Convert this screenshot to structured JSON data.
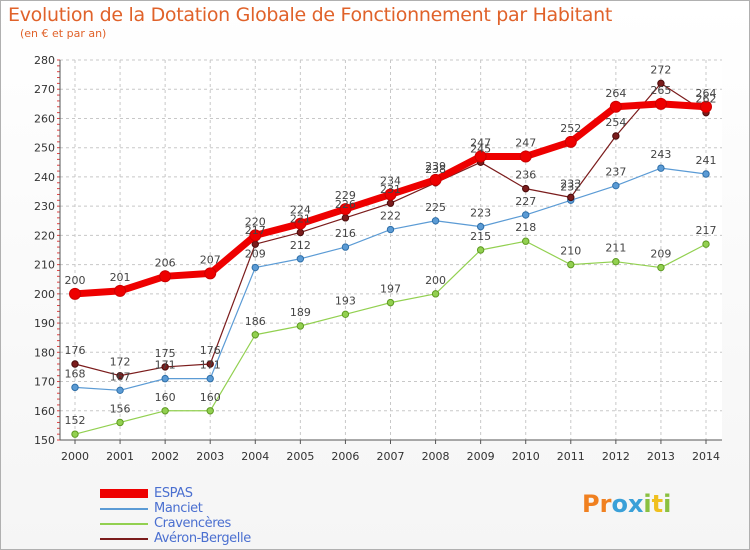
{
  "title": "Evolution de la Dotation Globale de Fonctionnement par Habitant",
  "subtitle": "(en € et par an)",
  "logo": {
    "letters": [
      "P",
      "r",
      "o",
      "x",
      "i",
      "t",
      "i"
    ],
    "colors": [
      "#f08020",
      "#f08020",
      "#3aa0d8",
      "#3aa0d8",
      "#8ac040",
      "#f0c020",
      "#8ac040"
    ]
  },
  "chart_data": {
    "type": "line",
    "x": [
      "2000",
      "2001",
      "2002",
      "2003",
      "2004",
      "2005",
      "2006",
      "2007",
      "2008",
      "2009",
      "2010",
      "2011",
      "2012",
      "2013",
      "2014"
    ],
    "ylim": [
      150,
      280
    ],
    "yticks": [
      150,
      160,
      170,
      180,
      190,
      200,
      210,
      220,
      230,
      240,
      250,
      260,
      270,
      280
    ],
    "grid": true,
    "legend_position": "bottom-left",
    "series": [
      {
        "name": "ESPAS",
        "color": "#ee0000",
        "values": [
          200,
          201,
          206,
          207,
          220,
          224,
          229,
          234,
          239,
          247,
          247,
          252,
          264,
          265,
          264
        ]
      },
      {
        "name": "Manciet",
        "color": "#5b9bd5",
        "values": [
          168,
          167,
          171,
          171,
          209,
          212,
          216,
          222,
          225,
          223,
          227,
          232,
          237,
          243,
          241
        ]
      },
      {
        "name": "Cravencères",
        "color": "#92d050",
        "values": [
          152,
          156,
          160,
          160,
          186,
          189,
          193,
          197,
          200,
          215,
          218,
          210,
          211,
          209,
          217
        ]
      },
      {
        "name": "Avéron-Bergelle",
        "color": "#7b1c1c",
        "values": [
          176,
          172,
          175,
          176,
          217,
          221,
          226,
          231,
          238,
          245,
          236,
          233,
          254,
          272,
          262
        ]
      }
    ],
    "labels": {
      "ESPAS": [
        "200",
        "201",
        "206",
        "207",
        "220",
        "224",
        "229",
        "234",
        "239",
        "247",
        "247",
        "252",
        "264",
        "265",
        "264"
      ],
      "Manciet": [
        "168",
        "167",
        "171",
        "171",
        "209",
        "212",
        "216",
        "222",
        "225",
        "223",
        "227",
        "232",
        "237",
        "243",
        "241"
      ],
      "Cravencères": [
        "152",
        "156",
        "160",
        "160",
        "186",
        "189",
        "193",
        "197",
        "200",
        "215",
        "218",
        "210",
        "211",
        "209",
        "217"
      ],
      "Avéron-Bergelle": [
        "176",
        "172",
        "175",
        "176",
        "217",
        "221",
        "226",
        "231",
        "238",
        "245",
        "236",
        "233",
        "254",
        "272",
        "262"
      ]
    }
  }
}
